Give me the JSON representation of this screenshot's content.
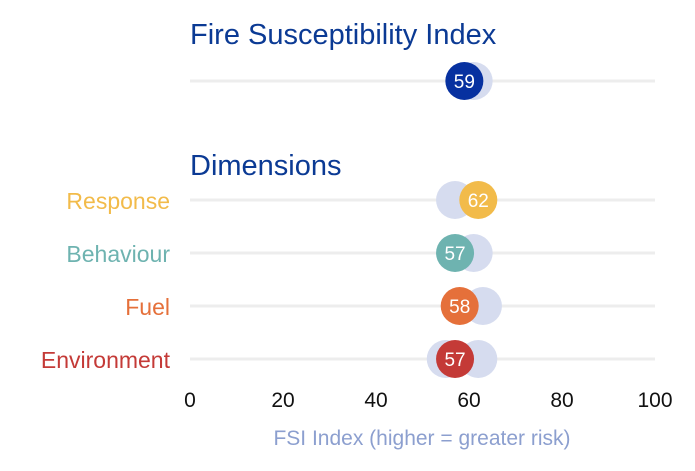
{
  "chart_data": {
    "type": "scatter",
    "title": "Fire Susceptibility Index",
    "section_title": "Dimensions",
    "xlabel": "FSI Index (higher = greater risk)",
    "xlim": [
      0,
      100
    ],
    "xticks": [
      "0",
      "20",
      "40",
      "60",
      "80",
      "100"
    ],
    "grid": false,
    "colors": {
      "title": "#0b3a94",
      "axis_title": "#8c9fcf",
      "ghost": "#d6dcef",
      "track": "#ededed"
    },
    "overall": {
      "label": "",
      "value": 59,
      "ghost_value": 61,
      "color": "#0731a0"
    },
    "dimensions": [
      {
        "label": "Response",
        "value": 62,
        "ghost_value": 57,
        "color": "#f2bb4a"
      },
      {
        "label": "Behaviour",
        "value": 57,
        "ghost_value": 61,
        "color": "#6eb3b0"
      },
      {
        "label": "Fuel",
        "value": 58,
        "ghost_value": 63,
        "color": "#e5703a"
      },
      {
        "label": "Environment",
        "value": 57,
        "ghost_value": 62,
        "color": "#c43a37",
        "ghost_value_2": 55
      }
    ]
  }
}
